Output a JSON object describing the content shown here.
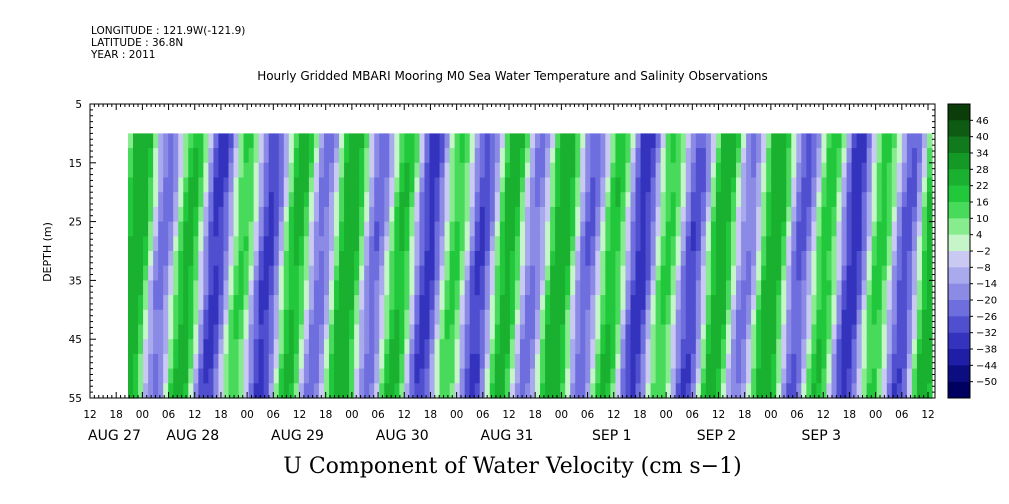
{
  "header": {
    "longitude": "LONGITUDE : 121.9W(-121.9)",
    "latitude": "LATITUDE : 36.8N",
    "year": "YEAR : 2011"
  },
  "chart_data": {
    "type": "heatmap",
    "title": "Hourly Gridded MBARI Mooring M0 Sea Water Temperature and Salinity Observations",
    "xlabel": "U Component of Water Velocity (cm s−1)",
    "ylabel": "DEPTH (m)",
    "ylim": [
      5,
      55
    ],
    "y_inverted": true,
    "yticks": [
      5,
      15,
      25,
      35,
      45,
      55
    ],
    "x_hour_ticks": [
      "12",
      "18",
      "00",
      "06",
      "12",
      "18",
      "00",
      "06",
      "12",
      "18",
      "00",
      "06",
      "12",
      "18",
      "00",
      "06",
      "12",
      "18",
      "00",
      "06",
      "12",
      "18",
      "00",
      "06",
      "12",
      "18",
      "00",
      "06",
      "12",
      "18",
      "00",
      "06",
      "12"
    ],
    "x_day_labels": [
      "AUG 27",
      "AUG 28",
      "AUG 29",
      "AUG 30",
      "AUG 31",
      "SEP  1",
      "SEP  2",
      "SEP  3"
    ],
    "data_depth_range": [
      10,
      55
    ],
    "colorbar": {
      "levels": [
        "46",
        "40",
        "34",
        "28",
        "22",
        "16",
        "10",
        "4",
        "−2",
        "−8",
        "−14",
        "−20",
        "−26",
        "−32",
        "−38",
        "−44",
        "−50"
      ],
      "colors": [
        "#0b3d0b",
        "#0e5c14",
        "#117a1d",
        "#149826",
        "#19b12f",
        "#22c83c",
        "#48da5a",
        "#86ec8e",
        "#c6f5c9",
        "#c9c9f4",
        "#a9a9ee",
        "#8b8be6",
        "#6e6ede",
        "#4f4fd0",
        "#3333be",
        "#1e1ea6",
        "#0d0d82",
        "#000060"
      ]
    },
    "u_velocity_sign_by_day": [
      {
        "day": "AUG 27",
        "pattern": "positive then negative bands, alternating with tidal period"
      },
      {
        "day": "AUG 28",
        "pattern": "alternating bands"
      },
      {
        "day": "AUG 29",
        "pattern": "alternating bands"
      },
      {
        "day": "AUG 30",
        "pattern": "alternating bands"
      },
      {
        "day": "AUG 31",
        "pattern": "alternating bands"
      },
      {
        "day": "SEP  1",
        "pattern": "alternating bands"
      },
      {
        "day": "SEP  2",
        "pattern": "alternating bands"
      },
      {
        "day": "SEP  3",
        "pattern": "alternating bands"
      }
    ]
  }
}
